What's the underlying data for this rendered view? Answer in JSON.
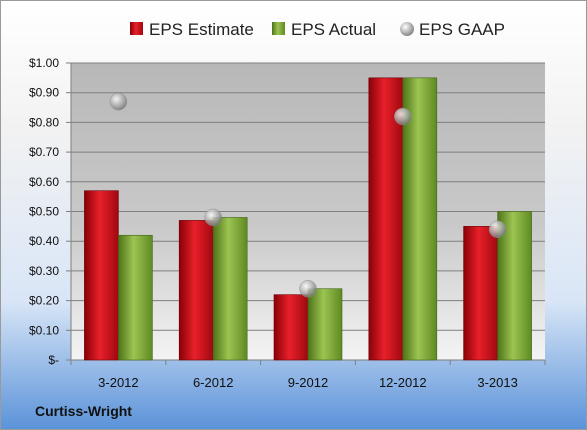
{
  "company_label": "Curtiss-Wright",
  "chart_data": {
    "type": "bar",
    "categories": [
      "3-2012",
      "6-2012",
      "9-2012",
      "12-2012",
      "3-2013"
    ],
    "series": [
      {
        "name": "EPS Estimate",
        "type": "bar",
        "color": "#c0101a",
        "values": [
          0.57,
          0.47,
          0.22,
          0.95,
          0.45
        ]
      },
      {
        "name": "EPS Actual",
        "type": "bar",
        "color": "#6f9a2a",
        "values": [
          0.42,
          0.48,
          0.24,
          0.95,
          0.5
        ]
      },
      {
        "name": "EPS GAAP",
        "type": "scatter",
        "color": "#a8a8a8",
        "values": [
          0.87,
          0.48,
          0.24,
          0.82,
          0.44
        ]
      }
    ],
    "y_ticks": [
      "$-",
      "$0.10",
      "$0.20",
      "$0.30",
      "$0.40",
      "$0.50",
      "$0.60",
      "$0.70",
      "$0.80",
      "$0.90",
      "$1.00"
    ],
    "ylim": [
      0,
      1.0
    ],
    "grid": true,
    "legend_position": "top"
  }
}
